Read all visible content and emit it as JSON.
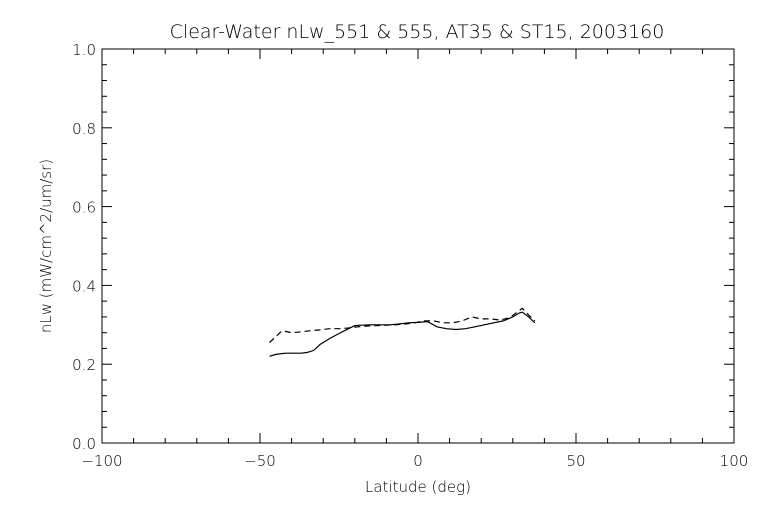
{
  "chart_data": {
    "type": "line",
    "title": "Clear-Water nLw_551 & 555, AT35 & ST15, 2003160",
    "xlabel": "Latitude (deg)",
    "ylabel": "nLw (mW/cm^2/um/sr)",
    "xlim": [
      -100,
      100
    ],
    "ylim": [
      0.0,
      1.0
    ],
    "x_ticks": [
      -100,
      -50,
      0,
      50,
      100
    ],
    "x_tick_labels": [
      "−100",
      "−50",
      "0",
      "50",
      "100"
    ],
    "y_ticks": [
      0.0,
      0.2,
      0.4,
      0.6,
      0.8,
      1.0
    ],
    "y_tick_labels": [
      "0.0",
      "0.2",
      "0.4",
      "0.6",
      "0.8",
      "1.0"
    ],
    "grid": false,
    "legend": "none",
    "series": [
      {
        "style": "solid",
        "color": "#000000",
        "x": [
          -47,
          -45,
          -42,
          -40,
          -37,
          -35,
          -33,
          -31,
          -28,
          -25,
          -22,
          -20,
          -18,
          -15,
          -12,
          -9,
          -6,
          -3,
          0,
          3,
          6,
          9,
          12,
          15,
          18,
          21,
          24,
          27,
          30,
          32,
          33,
          35,
          37
        ],
        "y": [
          0.22,
          0.225,
          0.228,
          0.228,
          0.228,
          0.23,
          0.235,
          0.25,
          0.265,
          0.278,
          0.29,
          0.298,
          0.299,
          0.3,
          0.3,
          0.3,
          0.302,
          0.305,
          0.306,
          0.308,
          0.295,
          0.29,
          0.288,
          0.29,
          0.295,
          0.3,
          0.305,
          0.31,
          0.32,
          0.33,
          0.332,
          0.32,
          0.305
        ]
      },
      {
        "style": "dashed",
        "color": "#000000",
        "x": [
          -47,
          -45,
          -43,
          -40,
          -37,
          -34,
          -31,
          -28,
          -25,
          -22,
          -19,
          -16,
          -13,
          -10,
          -7,
          -4,
          -1,
          2,
          5,
          8,
          11,
          14,
          17,
          20,
          23,
          26,
          29,
          31,
          33,
          35,
          37
        ],
        "y": [
          0.255,
          0.27,
          0.285,
          0.28,
          0.282,
          0.285,
          0.287,
          0.29,
          0.29,
          0.292,
          0.295,
          0.297,
          0.298,
          0.299,
          0.3,
          0.302,
          0.305,
          0.31,
          0.31,
          0.305,
          0.305,
          0.31,
          0.32,
          0.315,
          0.315,
          0.312,
          0.318,
          0.33,
          0.342,
          0.325,
          0.31
        ]
      }
    ]
  }
}
